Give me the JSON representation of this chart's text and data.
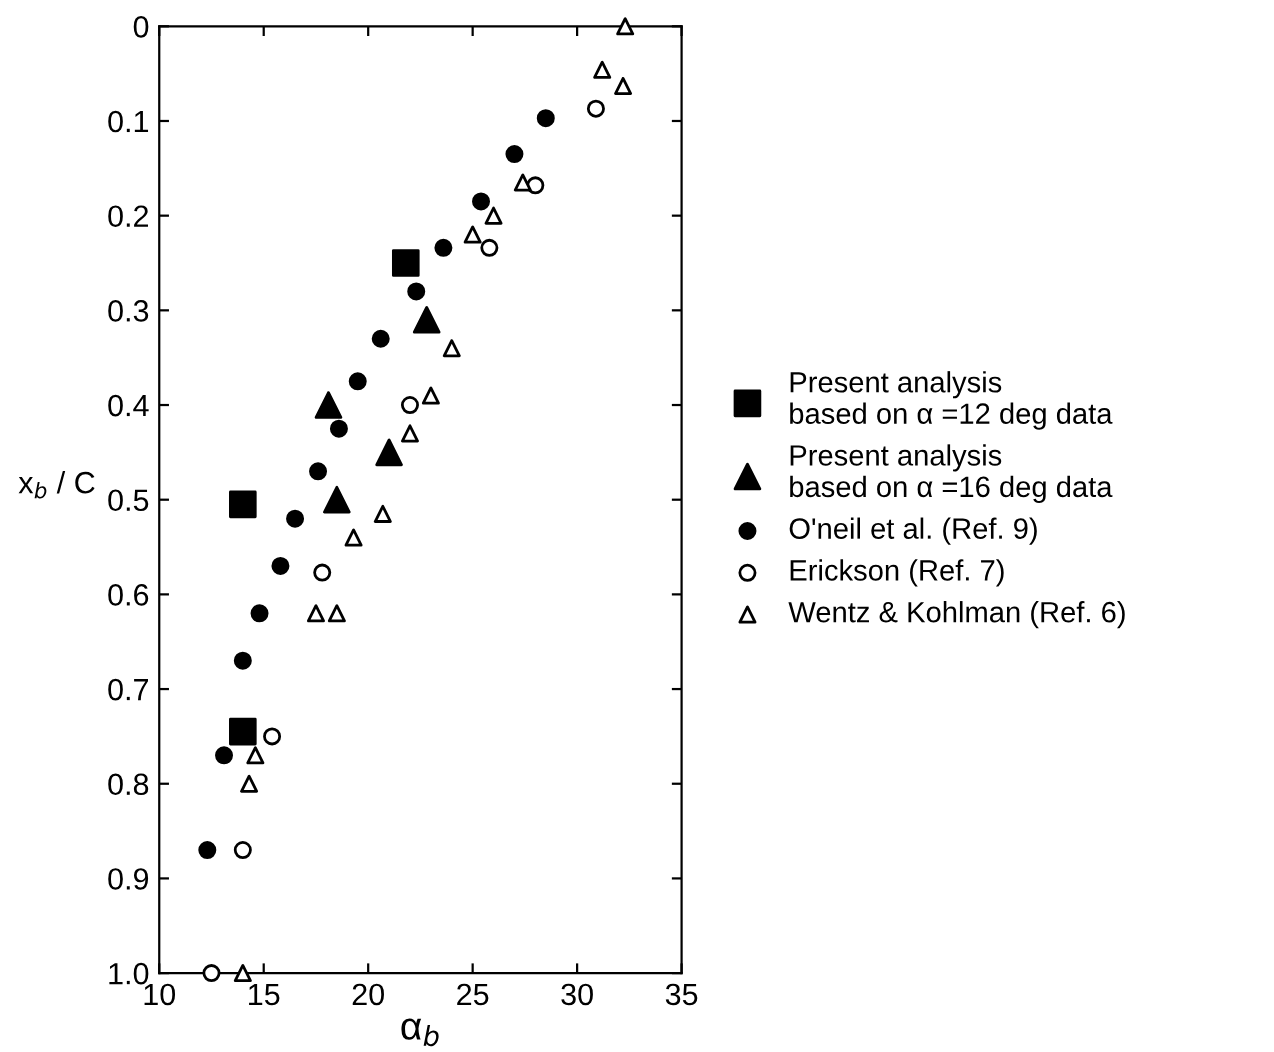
{
  "chart_data": {
    "type": "scatter",
    "xlabel": "α$_{b}$",
    "ylabel": "x$_{b}$ / C",
    "xlim": [
      10,
      35
    ],
    "xticks": [
      10,
      15,
      20,
      25,
      30,
      35
    ],
    "ylim": [
      1.0,
      0
    ],
    "yticks": [
      0,
      0.1,
      0.2,
      0.3,
      0.4,
      0.5,
      0.6,
      0.7,
      0.8,
      0.9,
      {
        "value": 1,
        "label": "1.0"
      }
    ],
    "grid": false,
    "legend": "right",
    "series": [
      {
        "name": "Present analysis\nbased on α =12 deg data",
        "color": "#000000",
        "marker": "square",
        "x": [
          21.8,
          14,
          14
        ],
        "values": [
          0.25,
          0.505,
          0.745
        ]
      },
      {
        "name": "Present analysis\nbased on α =16 deg data",
        "color": "#000000",
        "marker": "triangle",
        "x": [
          22.8,
          18.1,
          21,
          18.5
        ],
        "values": [
          0.31,
          0.4,
          0.45,
          0.5
        ]
      },
      {
        "name": "O'neil et al. (Ref. 9)",
        "color": "#000000",
        "marker": "circle",
        "x": [
          28.5,
          27,
          25.4,
          23.6,
          22.3,
          20.6,
          19.5,
          18.6,
          17.6,
          16.5,
          15.8,
          14.8,
          14,
          13.1,
          12.3
        ],
        "values": [
          0.097,
          0.135,
          0.185,
          0.234,
          0.28,
          0.33,
          0.375,
          0.425,
          0.47,
          0.52,
          0.57,
          0.62,
          0.67,
          0.77,
          0.87
        ]
      },
      {
        "name": "Erickson (Ref. 7)",
        "color": "#ffffff",
        "marker": "circle",
        "x": [
          30.9,
          28,
          25.8,
          22,
          17.8,
          15.4,
          14,
          12.5
        ],
        "values": [
          0.087,
          0.168,
          0.234,
          0.4,
          0.577,
          0.75,
          0.87,
          1.0
        ]
      },
      {
        "name": "Wentz & Kohlman (Ref. 6)",
        "color": "#ffffff",
        "marker": "triangle",
        "x": [
          32.3,
          31.2,
          32.2,
          27.4,
          26,
          25,
          24,
          23,
          22,
          20.7,
          19.3,
          17.5,
          18.5,
          14.6,
          14.3,
          14
        ],
        "values": [
          0.0,
          0.046,
          0.063,
          0.165,
          0.2,
          0.22,
          0.34,
          0.39,
          0.43,
          0.515,
          0.54,
          0.62,
          0.62,
          0.77,
          0.8,
          1.0
        ]
      }
    ]
  }
}
